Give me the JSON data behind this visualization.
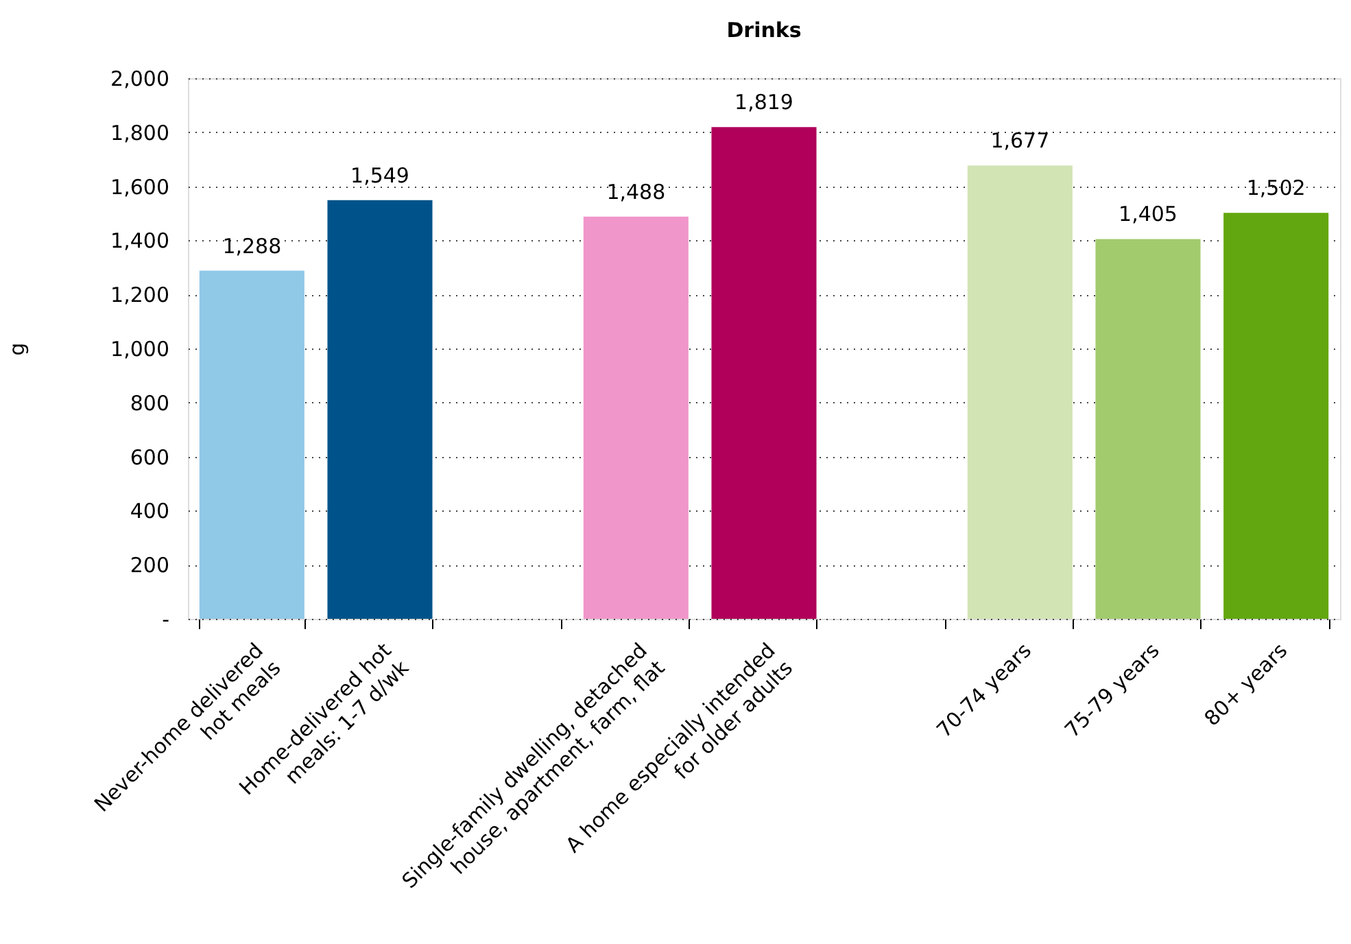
{
  "chart_data": {
    "type": "bar",
    "title": "Drinks",
    "ylabel": "g",
    "categories": [
      "Never-home delivered hot meals",
      "Home-delivered hot meals: 1-7 d/wk",
      null,
      "Single-family dwelling, detached house, apartment, farm, flat",
      "A home especially intended for older adults",
      null,
      "70-74 years",
      "75-79 years",
      "80+ years"
    ],
    "values": [
      1288,
      1549,
      null,
      1488,
      1819,
      null,
      1677,
      1405,
      1502
    ],
    "colors": [
      "#90c8e8",
      "#00538a",
      "#ffffff",
      "#f096cb",
      "#b0005a",
      "#ffffff",
      "#d2e4b4",
      "#a2cb6e",
      "#62a70f"
    ],
    "ylim": [
      0,
      2000
    ],
    "yticks": [
      {
        "value": 0,
        "label": "-"
      },
      200,
      400,
      600,
      800,
      {
        "value": 1000,
        "label": "1,000"
      },
      {
        "value": 1200,
        "label": "1,200"
      },
      {
        "value": 1400,
        "label": "1,400"
      },
      {
        "value": 1600,
        "label": "1,600"
      },
      {
        "value": 1800,
        "label": "1,800"
      },
      {
        "value": 2000,
        "label": "2,000"
      }
    ],
    "value_labels": [
      "1,288",
      "1,549",
      null,
      "1,488",
      "1,819",
      null,
      "1,677",
      "1,405",
      "1,502"
    ],
    "grid": "y"
  }
}
